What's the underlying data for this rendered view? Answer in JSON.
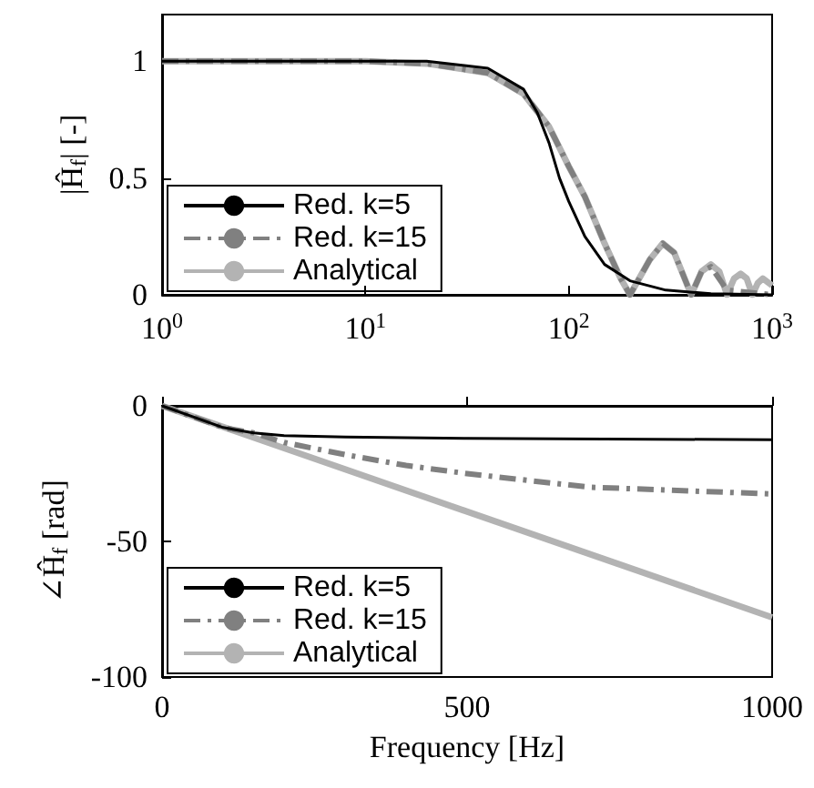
{
  "chart_data": [
    {
      "type": "line",
      "ylabel": "|Ĥ$_{f}$| [-]",
      "log": "x",
      "xlim": [
        1,
        1000
      ],
      "xticks": [
        {
          "value": 1,
          "label": "10$^{0}$"
        },
        {
          "value": 10,
          "label": "10$^{1}$"
        },
        {
          "value": 100,
          "label": "10$^{2}$"
        },
        {
          "value": 1000,
          "label": "10$^{3}$"
        }
      ],
      "ylim": [
        0,
        1.2
      ],
      "yticks": [
        0,
        0.5,
        1
      ],
      "grid": false,
      "legend": "bottom left",
      "series": [
        {
          "name": "Red. k=5",
          "color": "#000000",
          "line_style": "solid",
          "x": [
            1,
            20,
            40,
            60,
            70,
            80,
            90,
            100,
            120,
            150,
            200,
            300,
            500,
            1000
          ],
          "values": [
            1,
            1,
            0.97,
            0.88,
            0.78,
            0.65,
            0.5,
            0.4,
            0.25,
            0.13,
            0.06,
            0.02,
            0.005,
            0
          ]
        },
        {
          "name": "Red. k=15",
          "color": "#808080",
          "line_style": "dashed",
          "x": [
            1,
            10,
            20,
            40,
            60,
            80,
            100,
            120,
            150,
            180,
            200,
            250,
            290,
            330,
            400,
            450,
            500,
            600,
            1000
          ],
          "values": [
            1,
            1,
            0.99,
            0.95,
            0.86,
            0.72,
            0.55,
            0.42,
            0.22,
            0.07,
            0,
            0.15,
            0.22,
            0.18,
            0,
            0.1,
            0.12,
            0.02,
            0
          ]
        },
        {
          "name": "Analytical",
          "color": "#b3b3b3",
          "line_style": "solid",
          "x": [
            1,
            10,
            20,
            40,
            60,
            80,
            100,
            120,
            150,
            180,
            200,
            250,
            290,
            330,
            400,
            450,
            500,
            550,
            600,
            650,
            700,
            750,
            800,
            850,
            900,
            1000
          ],
          "values": [
            1,
            1,
            0.99,
            0.95,
            0.86,
            0.72,
            0.55,
            0.42,
            0.22,
            0.07,
            0,
            0.15,
            0.22,
            0.18,
            0,
            0.1,
            0.13,
            0.1,
            0,
            0.07,
            0.09,
            0.07,
            0,
            0.05,
            0.07,
            0.04
          ]
        }
      ]
    },
    {
      "type": "line",
      "xlabel": "Frequency [Hz]",
      "ylabel": "∠Ĥ$_{f}$ [rad]",
      "xlim": [
        0,
        1000
      ],
      "xticks": [
        0,
        500,
        1000
      ],
      "ylim": [
        -100,
        0
      ],
      "yticks": [
        -100,
        -50,
        0
      ],
      "grid": false,
      "legend": "bottom left",
      "series": [
        {
          "name": "Red. k=5",
          "color": "#000000",
          "line_style": "solid",
          "x": [
            0,
            50,
            100,
            150,
            200,
            300,
            500,
            1000
          ],
          "values": [
            0,
            -4,
            -8,
            -10,
            -11,
            -11.5,
            -12,
            -12.5
          ]
        },
        {
          "name": "Red. k=15",
          "color": "#808080",
          "line_style": "dashed",
          "x": [
            0,
            50,
            100,
            150,
            200,
            300,
            400,
            500,
            700,
            1000
          ],
          "values": [
            0,
            -4,
            -8,
            -10,
            -13.5,
            -18,
            -22,
            -25,
            -30,
            -32.5
          ]
        },
        {
          "name": "Analytical",
          "color": "#b3b3b3",
          "line_style": "solid",
          "x": [
            0,
            1000
          ],
          "values": [
            0,
            -78
          ]
        }
      ]
    }
  ]
}
